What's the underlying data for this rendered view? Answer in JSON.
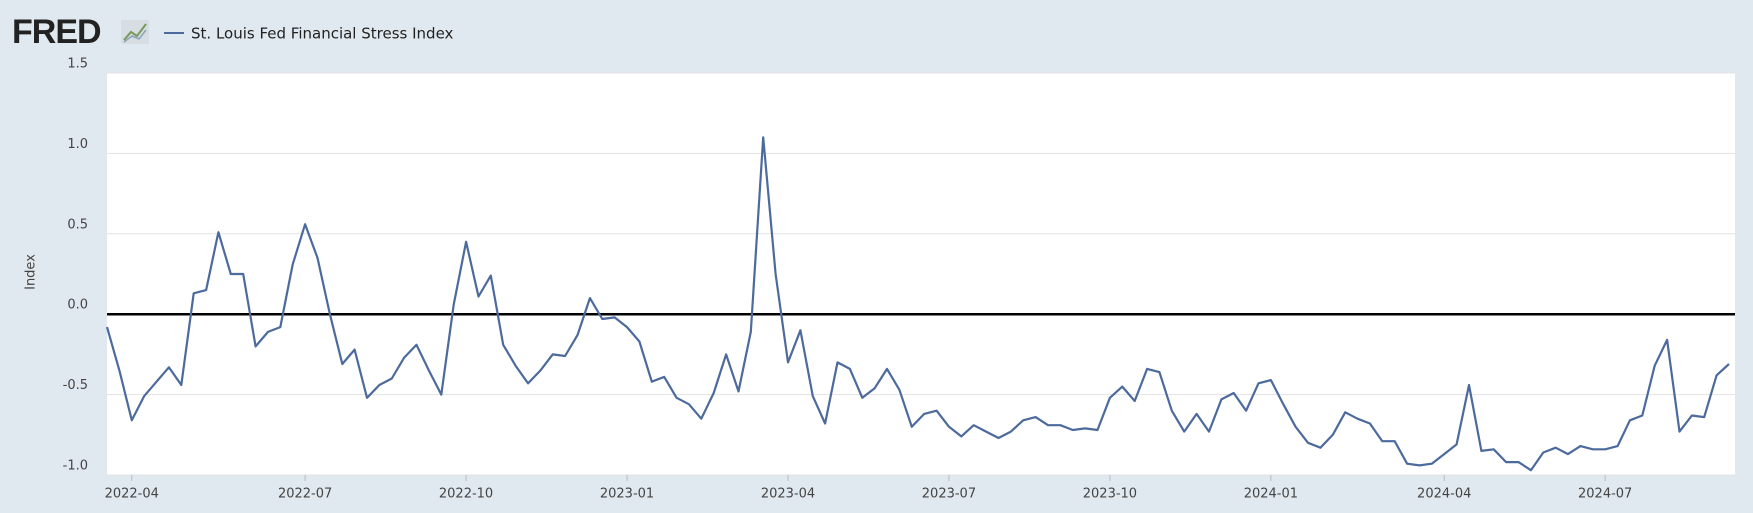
{
  "logo": "FRED",
  "chart_data": {
    "type": "line",
    "y_label": "Index",
    "grid": true,
    "hline": 0,
    "ylim": [
      -1.0,
      1.5
    ],
    "yticks": [
      {
        "value": -1,
        "label": "-1.0"
      },
      -0.5,
      {
        "value": 0,
        "label": "0.0"
      },
      0.5,
      {
        "value": 1,
        "label": "1.0"
      },
      1.5
    ],
    "categories": [
      null,
      null,
      "2022-04",
      null,
      null,
      null,
      null,
      null,
      null,
      null,
      null,
      null,
      null,
      null,
      null,
      null,
      "2022-07",
      null,
      null,
      null,
      null,
      null,
      null,
      null,
      null,
      null,
      null,
      null,
      null,
      "2022-10",
      null,
      null,
      null,
      null,
      null,
      null,
      null,
      null,
      null,
      null,
      null,
      null,
      "2023-01",
      null,
      null,
      null,
      null,
      null,
      null,
      null,
      null,
      null,
      null,
      null,
      null,
      "2023-04",
      null,
      null,
      null,
      null,
      null,
      null,
      null,
      null,
      null,
      null,
      null,
      null,
      "2023-07",
      null,
      null,
      null,
      null,
      null,
      null,
      null,
      null,
      null,
      null,
      null,
      null,
      "2023-10",
      null,
      null,
      null,
      null,
      null,
      null,
      null,
      null,
      null,
      null,
      null,
      null,
      "2024-01",
      null,
      null,
      null,
      null,
      null,
      null,
      null,
      null,
      null,
      null,
      null,
      null,
      null,
      "2024-04",
      null,
      null,
      null,
      null,
      null,
      null,
      null,
      null,
      null,
      null,
      null,
      null,
      "2024-07",
      null,
      null,
      null,
      null,
      null,
      null,
      null,
      null,
      null,
      null
    ],
    "series": [
      {
        "name": "St. Louis Fed Financial Stress Index",
        "color": "#4c6a9c",
        "values": [
          -0.08,
          -0.35,
          -0.66,
          -0.51,
          -0.42,
          -0.33,
          -0.44,
          0.13,
          0.15,
          0.51,
          0.25,
          0.25,
          -0.2,
          -0.11,
          -0.08,
          0.31,
          0.56,
          0.35,
          0.0,
          -0.31,
          -0.22,
          -0.52,
          -0.44,
          -0.4,
          -0.27,
          -0.19,
          -0.35,
          -0.5,
          0.06,
          0.45,
          0.11,
          0.24,
          -0.19,
          -0.32,
          -0.43,
          -0.35,
          -0.25,
          -0.26,
          -0.13,
          0.1,
          -0.03,
          -0.02,
          -0.08,
          -0.17,
          -0.42,
          -0.39,
          -0.52,
          -0.56,
          -0.65,
          -0.49,
          -0.25,
          -0.48,
          -0.11,
          1.1,
          0.25,
          -0.3,
          -0.1,
          -0.51,
          -0.68,
          -0.3,
          -0.34,
          -0.52,
          -0.46,
          -0.34,
          -0.47,
          -0.7,
          -0.62,
          -0.6,
          -0.7,
          -0.76,
          -0.69,
          -0.73,
          -0.77,
          -0.73,
          -0.66,
          -0.64,
          -0.69,
          -0.69,
          -0.72,
          -0.71,
          -0.72,
          -0.52,
          -0.45,
          -0.54,
          -0.34,
          -0.36,
          -0.6,
          -0.73,
          -0.62,
          -0.73,
          -0.53,
          -0.49,
          -0.6,
          -0.43,
          -0.41,
          -0.56,
          -0.7,
          -0.8,
          -0.83,
          -0.75,
          -0.61,
          -0.65,
          -0.68,
          -0.79,
          -0.79,
          -0.93,
          -0.94,
          -0.93,
          -0.87,
          -0.81,
          -0.44,
          -0.85,
          -0.84,
          -0.92,
          -0.92,
          -0.97,
          -0.86,
          -0.83,
          -0.87,
          -0.82,
          -0.84,
          -0.84,
          -0.82,
          -0.66,
          -0.63,
          -0.32,
          -0.16,
          -0.73,
          -0.63,
          -0.64,
          -0.38,
          -0.31
        ]
      }
    ]
  }
}
